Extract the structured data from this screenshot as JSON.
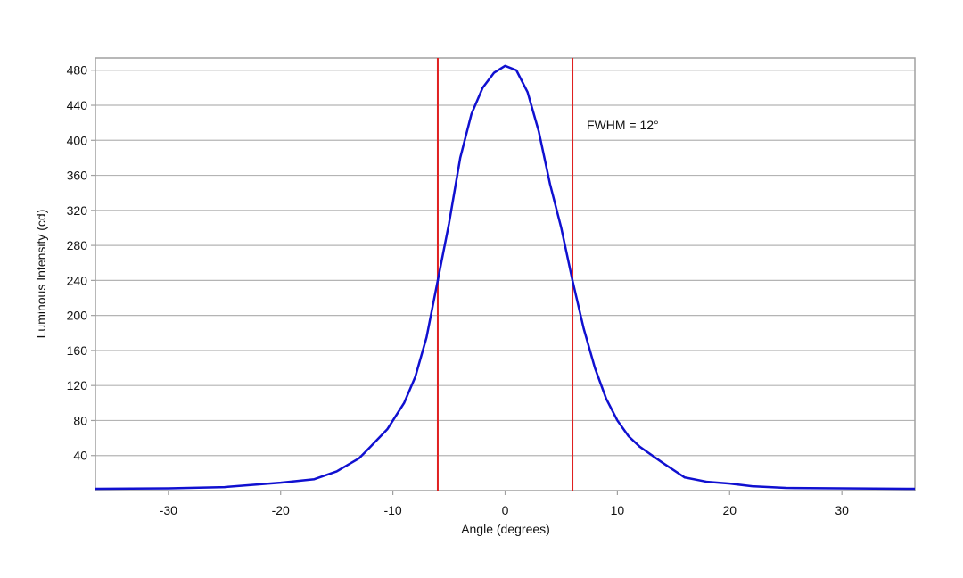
{
  "chart_data": {
    "type": "line",
    "title": "",
    "xlabel": "Angle (degrees)",
    "ylabel": "Luminous Intensity (cd)",
    "xlim": [
      -36.5,
      36.5
    ],
    "ylim": [
      0,
      494
    ],
    "xticks": [
      -30,
      -20,
      -10,
      0,
      10,
      20,
      30
    ],
    "yticks": [
      40,
      80,
      120,
      160,
      200,
      240,
      280,
      320,
      360,
      400,
      440,
      480
    ],
    "grid": "horizontal",
    "line_color": "#1010d0",
    "marker_color": "#e02020",
    "series": [
      {
        "x": [
          -36.5,
          -30,
          -25,
          -20,
          -17,
          -15,
          -13,
          -12,
          -10.5,
          -9,
          -8,
          -7,
          -6,
          -5,
          -4,
          -3,
          -2,
          -1,
          0,
          1,
          2,
          3,
          4,
          5,
          6,
          7,
          8,
          9,
          10,
          11,
          12,
          14,
          16,
          18,
          20,
          22,
          25,
          30,
          36.5
        ],
        "y": [
          2,
          2.5,
          4,
          9,
          13,
          22,
          37,
          50,
          70,
          100,
          130,
          175,
          240,
          305,
          380,
          430,
          460,
          477,
          485,
          480,
          455,
          410,
          350,
          300,
          240,
          185,
          140,
          105,
          80,
          62,
          50,
          32,
          15,
          10,
          8,
          5,
          3,
          2.5,
          2
        ]
      }
    ],
    "vlines": [
      -6,
      6
    ],
    "annotation": "FWHM = 12°"
  }
}
